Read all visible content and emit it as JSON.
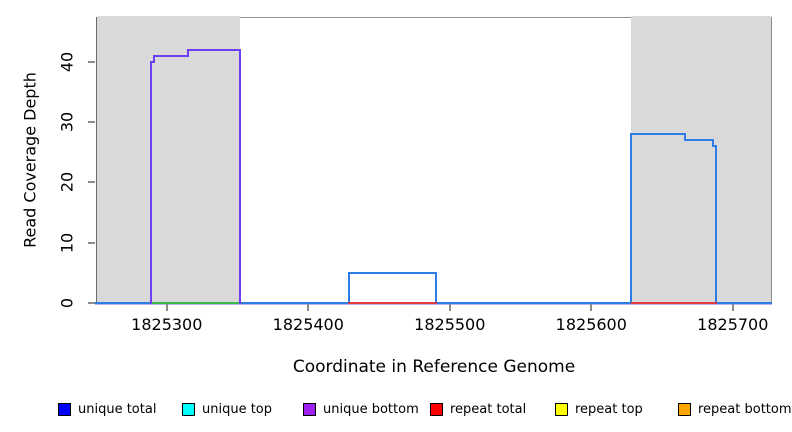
{
  "figure": {
    "y_axis_title": "Read Coverage Depth",
    "x_axis_title": "Coordinate in Reference Genome"
  },
  "legend": {
    "items": [
      {
        "label": "unique total",
        "color": "#0000ff"
      },
      {
        "label": "unique top",
        "color": "#00ffff"
      },
      {
        "label": "unique bottom",
        "color": "#a020f0"
      },
      {
        "label": "repeat total",
        "color": "#ff0000"
      },
      {
        "label": "repeat top",
        "color": "#ffff00"
      },
      {
        "label": "repeat bottom",
        "color": "#ffa500"
      }
    ]
  },
  "chart_data": {
    "type": "line",
    "subtype": "step-coverage",
    "title": "",
    "xlabel": "Coordinate in Reference Genome",
    "ylabel": "Read Coverage Depth",
    "xlim": [
      1825250,
      1825727
    ],
    "ylim": [
      0,
      47.5
    ],
    "x_ticks": [
      1825300,
      1825400,
      1825500,
      1825600,
      1825700
    ],
    "y_ticks": [
      0,
      10,
      20,
      30,
      40
    ],
    "grid": false,
    "legend_position": "bottom",
    "shaded_regions": [
      {
        "name": "repeat-region-left",
        "x0": 1825250,
        "x1": 1825352,
        "fill": "#d9d9d9"
      },
      {
        "name": "repeat-region-right",
        "x0": 1825628,
        "x1": 1825727,
        "fill": "#d9d9d9"
      }
    ],
    "series": [
      {
        "name": "zero-baseline-underlay",
        "color": "#c4b0f3",
        "dy": 1,
        "segments": [
          [
            [
              1825250,
              0
            ],
            [
              1825727,
              0
            ]
          ]
        ]
      },
      {
        "name": "unique total",
        "color": "#2f7de4",
        "segments": [
          [
            [
              1825250,
              0
            ],
            [
              1825429,
              0
            ],
            [
              1825429,
              5
            ],
            [
              1825490,
              5
            ],
            [
              1825490,
              0
            ],
            [
              1825628,
              0
            ],
            [
              1825628,
              28
            ],
            [
              1825666,
              28
            ],
            [
              1825666,
              27
            ],
            [
              1825686,
              27
            ],
            [
              1825686,
              26
            ],
            [
              1825688,
              26
            ],
            [
              1825688,
              0
            ],
            [
              1825727,
              0
            ]
          ]
        ]
      },
      {
        "name": "repeat total",
        "color": "#e23b3c",
        "segments": [
          [
            [
              1825429,
              0
            ],
            [
              1825490,
              0
            ]
          ],
          [
            [
              1825629,
              0
            ],
            [
              1825688,
              0
            ]
          ]
        ]
      },
      {
        "name": "zero-overlap-green",
        "color": "#3cb84c",
        "segments": [
          [
            [
              1825289,
              0
            ],
            [
              1825352,
              0
            ]
          ]
        ]
      },
      {
        "name": "unique bottom",
        "color": "#6e3ff0",
        "segments": [
          [
            [
              1825289,
              0
            ],
            [
              1825289,
              40
            ],
            [
              1825291,
              40
            ],
            [
              1825291,
              41
            ],
            [
              1825315,
              41
            ],
            [
              1825315,
              42
            ],
            [
              1825352,
              42
            ],
            [
              1825352,
              0
            ]
          ]
        ]
      }
    ]
  }
}
